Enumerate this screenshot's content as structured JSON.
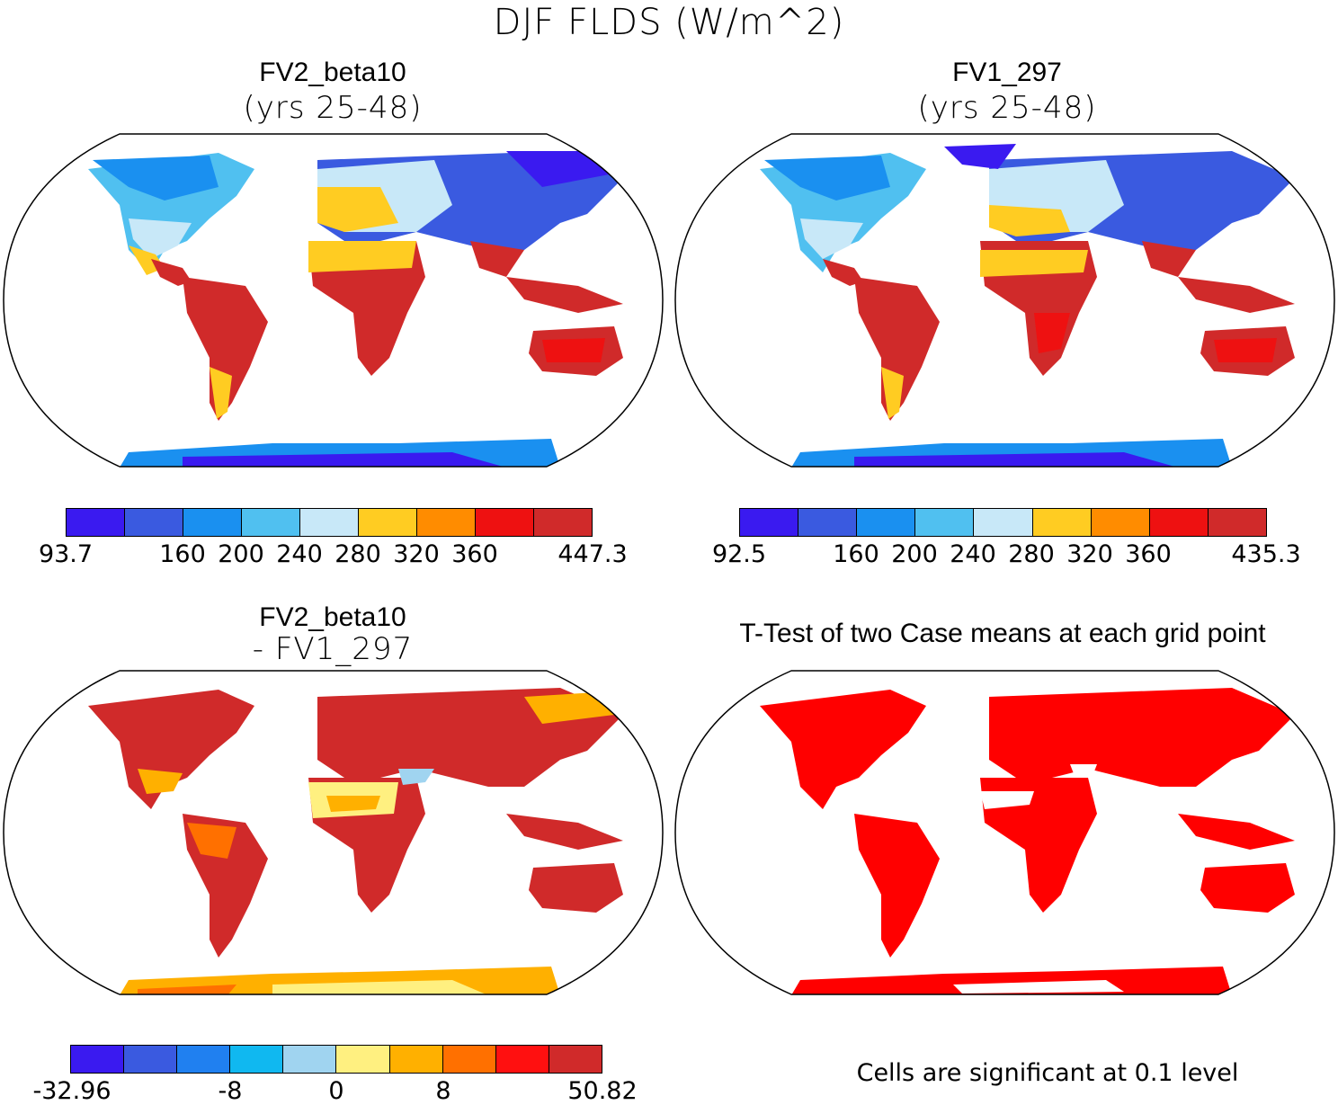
{
  "title": "DJF FLDS (W/m^2)",
  "panels": [
    {
      "id": "p1",
      "title": "FV2_beta10",
      "subtitle": "(yrs 25-48)"
    },
    {
      "id": "p2",
      "title": "FV1_297",
      "subtitle": "(yrs 25-48)"
    },
    {
      "id": "p3",
      "title": "FV2_beta10",
      "subtitle": "- FV1_297"
    },
    {
      "id": "p4",
      "title": "T-Test of two Case means at each grid point",
      "subtitle": ""
    }
  ],
  "colorbars": [
    {
      "id": "cb1",
      "colors": [
        "#3a1af0",
        "#3a5ae0",
        "#1a90f0",
        "#50c0f0",
        "#c8e8f8",
        "#ffcc22",
        "#ff8c00",
        "#ee1111",
        "#d02a2a"
      ],
      "ticks": [
        "93.7",
        "160",
        "200",
        "240",
        "280",
        "320",
        "360",
        "447.3"
      ]
    },
    {
      "id": "cb2",
      "colors": [
        "#3a1af0",
        "#3a5ae0",
        "#1a90f0",
        "#50c0f0",
        "#c8e8f8",
        "#ffcc22",
        "#ff8c00",
        "#ee1111",
        "#d02a2a"
      ],
      "ticks": [
        "92.5",
        "160",
        "200",
        "240",
        "280",
        "320",
        "360",
        "435.3"
      ]
    },
    {
      "id": "cb3",
      "colors": [
        "#3a1af0",
        "#3a5ae0",
        "#2080f0",
        "#10b8f0",
        "#a0d4f0",
        "#fff080",
        "#ffb000",
        "#ff7000",
        "#ff1010",
        "#d02a2a"
      ],
      "ticks": [
        "-32.96",
        "-8",
        "0",
        "8",
        "50.82"
      ]
    }
  ],
  "footnote": "Cells are significant at 0.1 level",
  "colors": {
    "significant": "#ff0000",
    "ocean": "#ffffff",
    "border": "#000000"
  }
}
